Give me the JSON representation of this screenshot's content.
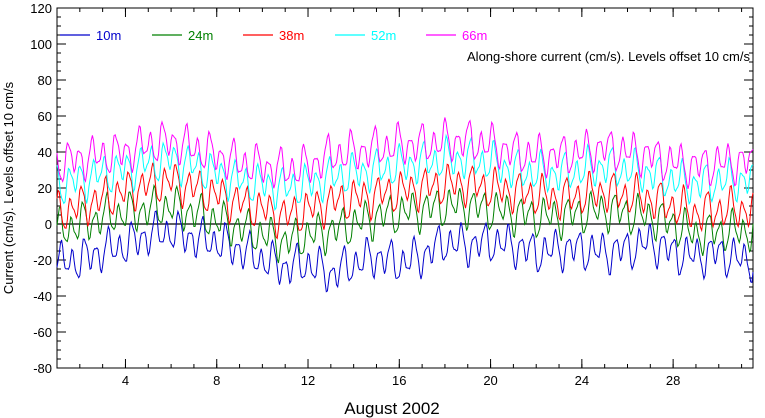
{
  "chart_data": {
    "type": "line",
    "title": "",
    "annotation": "Along-shore current (cm/s). Levels offset 10 cm/s",
    "xlabel": "August 2002",
    "ylabel": "Current (cm/s). Levels offset 10 cm/s",
    "xlim": [
      1,
      31.5
    ],
    "ylim": [
      -80,
      120
    ],
    "x_ticks": [
      4,
      8,
      12,
      16,
      20,
      24,
      28
    ],
    "y_ticks": [
      -80,
      -60,
      -40,
      -20,
      0,
      20,
      40,
      60,
      80,
      100,
      120
    ],
    "zero_line": true,
    "grid": false,
    "legend_position": "top-left",
    "x": [
      1,
      2,
      3,
      4,
      5,
      6,
      7,
      8,
      9,
      10,
      11,
      12,
      13,
      14,
      15,
      16,
      17,
      18,
      19,
      20,
      21,
      22,
      23,
      24,
      25,
      26,
      27,
      28,
      29,
      30,
      31
    ],
    "series": [
      {
        "name": "10m",
        "color": "#0000cc",
        "values": [
          -22,
          -20,
          -15,
          -12,
          -6,
          -4,
          -8,
          -10,
          -14,
          -20,
          -24,
          -22,
          -28,
          -22,
          -18,
          -22,
          -18,
          -10,
          -12,
          -10,
          -12,
          -16,
          -14,
          -14,
          -16,
          -14,
          -10,
          -16,
          -18,
          -16,
          -20
        ]
      },
      {
        "name": "24m",
        "color": "#008000",
        "values": [
          -4,
          0,
          4,
          6,
          8,
          10,
          6,
          2,
          -2,
          -6,
          -10,
          -6,
          -4,
          0,
          4,
          6,
          8,
          10,
          10,
          8,
          6,
          4,
          4,
          6,
          8,
          6,
          4,
          0,
          -6,
          -4,
          -4
        ]
      },
      {
        "name": "38m",
        "color": "#ff0000",
        "values": [
          6,
          10,
          14,
          18,
          22,
          24,
          20,
          16,
          12,
          8,
          4,
          8,
          12,
          14,
          16,
          18,
          20,
          22,
          22,
          20,
          18,
          16,
          14,
          16,
          18,
          16,
          14,
          10,
          6,
          8,
          8
        ]
      },
      {
        "name": "52m",
        "color": "#00ffff",
        "values": [
          22,
          24,
          28,
          30,
          34,
          36,
          32,
          28,
          24,
          22,
          20,
          22,
          26,
          28,
          30,
          32,
          34,
          36,
          36,
          34,
          30,
          28,
          28,
          30,
          32,
          30,
          28,
          24,
          22,
          24,
          24
        ]
      },
      {
        "name": "66m",
        "color": "#ff00ff",
        "values": [
          34,
          36,
          38,
          40,
          44,
          46,
          42,
          38,
          34,
          32,
          30,
          32,
          38,
          40,
          42,
          44,
          44,
          46,
          46,
          44,
          40,
          38,
          38,
          40,
          42,
          40,
          38,
          34,
          32,
          34,
          34
        ]
      }
    ]
  }
}
